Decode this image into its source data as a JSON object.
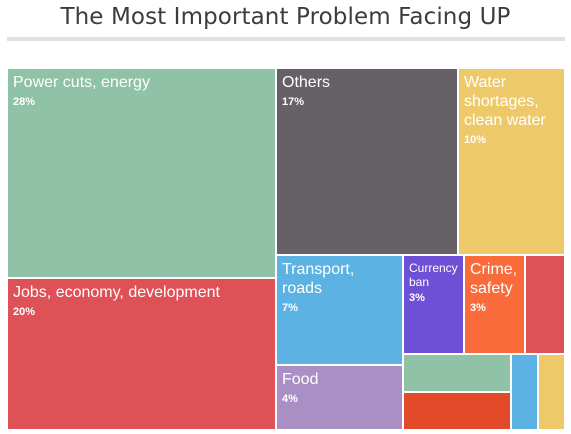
{
  "chart_data": {
    "type": "treemap",
    "title": "The Most Important Problem Facing UP",
    "tiles": [
      {
        "name": "Power cuts, energy",
        "percent": "28%",
        "color": "#8fc2a6"
      },
      {
        "name": "Others",
        "percent": "17%",
        "color": "#666166"
      },
      {
        "name": "Water shortages, clean water",
        "percent": "10%",
        "color": "#edc96a"
      },
      {
        "name": "Jobs, economy, development",
        "percent": "20%",
        "color": "#dd5157"
      },
      {
        "name": "Transport, roads",
        "percent": "7%",
        "color": "#5cb3e3"
      },
      {
        "name": "Currency ban",
        "percent": "3%",
        "color": "#6e50d6"
      },
      {
        "name": "Crime, safety",
        "percent": "3%",
        "color": "#f96b3a"
      },
      {
        "name": "",
        "percent": "",
        "color": "#dd5157"
      },
      {
        "name": "Food",
        "percent": "4%",
        "color": "#aa8fc4"
      },
      {
        "name": "",
        "percent": "",
        "color": "#8fc2a6"
      },
      {
        "name": "",
        "percent": "",
        "color": "#e34a2a"
      },
      {
        "name": "",
        "percent": "",
        "color": "#5cb3e3"
      },
      {
        "name": "",
        "percent": "",
        "color": "#edc96a"
      }
    ]
  }
}
